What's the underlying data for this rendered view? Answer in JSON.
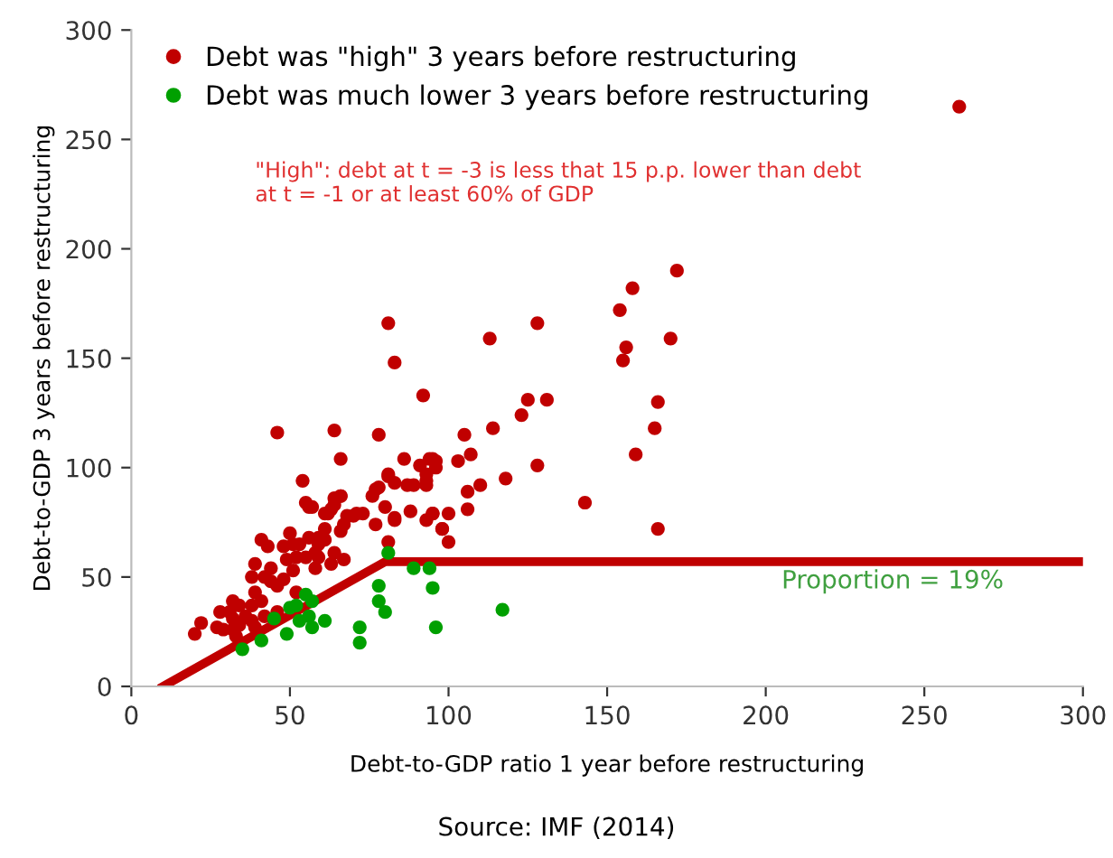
{
  "chart_data": {
    "type": "scatter",
    "xlabel": "Debt-to-GDP ratio 1 year before restructuring",
    "ylabel": "Debt-to-GDP 3 years before restructuring",
    "xlim": [
      0,
      300
    ],
    "ylim": [
      0,
      300
    ],
    "xticks": [
      0,
      50,
      100,
      150,
      200,
      250,
      300
    ],
    "yticks": [
      0,
      50,
      100,
      150,
      200,
      250,
      300
    ],
    "marker": "circle",
    "legend": "top left",
    "grid": false,
    "series": [
      {
        "name": "Debt was \"high\" 3 years before restructuring",
        "color": "#c00000",
        "x": [
          261,
          172,
          158,
          154,
          170,
          156,
          155,
          128,
          113,
          125,
          131,
          123,
          166,
          165,
          114,
          105,
          107,
          103,
          159,
          128,
          118,
          110,
          106,
          143,
          106,
          100,
          166,
          98,
          100,
          96,
          95,
          81,
          83,
          92,
          46,
          64,
          78,
          66,
          86,
          91,
          94,
          54,
          81,
          83,
          87,
          89,
          93,
          93,
          76,
          78,
          66,
          64,
          55,
          57,
          62,
          70,
          80,
          83,
          88,
          95,
          95,
          96,
          93,
          81,
          77,
          66,
          64,
          56,
          61,
          63,
          71,
          73,
          77,
          83,
          93,
          98,
          68,
          67,
          66,
          61,
          59,
          56,
          59,
          61,
          58,
          59,
          64,
          63,
          58,
          81,
          67,
          50,
          51,
          53,
          48,
          49,
          52,
          55,
          41,
          43,
          39,
          38,
          44,
          42,
          44,
          46,
          48,
          51,
          52,
          39,
          41,
          38,
          32,
          34,
          31,
          32,
          36,
          38,
          34,
          39,
          32,
          33,
          28,
          27,
          29,
          22,
          20,
          42,
          46
        ],
        "values": [
          265,
          190,
          182,
          172,
          159,
          155,
          149,
          166,
          159,
          131,
          131,
          124,
          130,
          118,
          118,
          115,
          106,
          103,
          106,
          101,
          95,
          92,
          89,
          84,
          81,
          79,
          72,
          72,
          66,
          103,
          79,
          166,
          148,
          133,
          116,
          117,
          115,
          104,
          104,
          101,
          104,
          94,
          97,
          93,
          92,
          92,
          94,
          92,
          87,
          91,
          87,
          86,
          84,
          82,
          79,
          78,
          82,
          77,
          80,
          79,
          104,
          100,
          97,
          96,
          90,
          87,
          83,
          82,
          79,
          81,
          79,
          79,
          74,
          76,
          76,
          72,
          78,
          74,
          71,
          72,
          68,
          68,
          65,
          67,
          61,
          59,
          61,
          56,
          54,
          66,
          58,
          70,
          65,
          65,
          64,
          58,
          59,
          59,
          67,
          64,
          56,
          50,
          54,
          50,
          48,
          46,
          49,
          53,
          43,
          43,
          39,
          37,
          39,
          37,
          34,
          31,
          32,
          30,
          28,
          27,
          26,
          23,
          34,
          27,
          26,
          29,
          24,
          32,
          34
        ]
      },
      {
        "name": "Debt was much lower 3 years before restructuring",
        "color": "#00a000",
        "x": [
          35,
          41,
          49,
          45,
          50,
          52,
          55,
          57,
          53,
          55,
          57,
          56,
          61,
          72,
          72,
          78,
          78,
          80,
          81,
          89,
          95,
          96,
          94,
          117
        ],
        "values": [
          17,
          21,
          24,
          31,
          36,
          37,
          42,
          39,
          30,
          null,
          27,
          32,
          30,
          27,
          20,
          46,
          39,
          34,
          61,
          54,
          45,
          27,
          54,
          35
        ]
      },
      {
        "type": "line",
        "marker": "none",
        "color": "#c00000",
        "x": [
          10,
          80,
          300
        ],
        "values": [
          0,
          57,
          57
        ]
      }
    ],
    "annotations": [
      "\"High\": debt at t = -3 is less that 15 p.p. lower than debt at t = -1 or at least 60% of GDP",
      "Proportion = 19%",
      "Source: IMF (2014)"
    ]
  }
}
